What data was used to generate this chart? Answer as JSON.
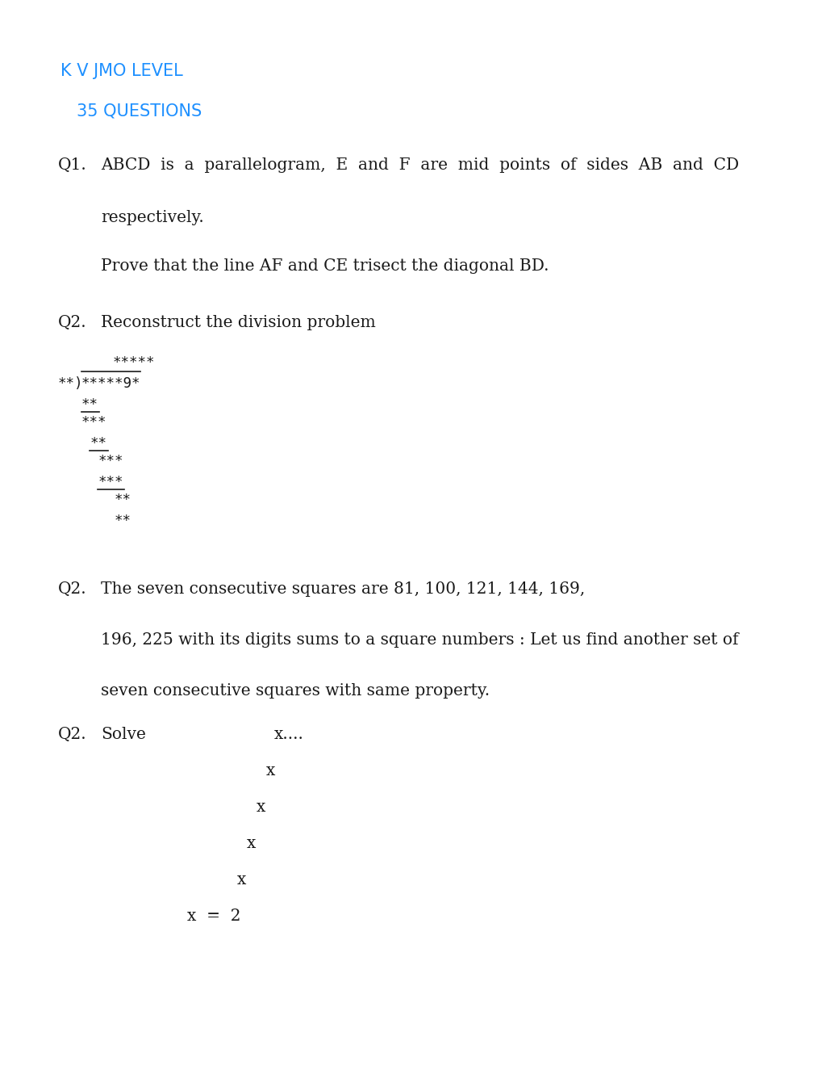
{
  "bg_color": "#ffffff",
  "title1": "K V JMO LEVEL",
  "title2": "35 QUESTIONS",
  "title_color": "#1E90FF",
  "text_color": "#1a1a1a",
  "body_font_size": 14.5,
  "mono_font_size": 12.5,
  "title1_font_size": 15,
  "title2_font_size": 15,
  "q1_label": "Q1.",
  "q1_text_line1": "ABCD  is  a  parallelogram,  E  and  F  are  mid  points  of  sides  AB  and  CD",
  "q1_text_line2": "respectively.",
  "q1_text_line3": "Prove that the line AF and CE trisect the diagonal BD.",
  "q2a_label": "Q2.",
  "q2a_text": "Reconstruct the division problem",
  "q2b_label": "Q2.",
  "q2b_text_line1": "The seven consecutive squares are 81, 100, 121, 144, 169,",
  "q2b_text_line2": "196, 225 with its digits sums to a square numbers : Let us find another set of",
  "q2b_text_line3": "seven consecutive squares with same property.",
  "q2c_label": "Q2.",
  "q2c_text": "Solve",
  "q2c_expr1": "x....",
  "q2c_expr_x": "x",
  "q2c_expr6": "x  =  2"
}
